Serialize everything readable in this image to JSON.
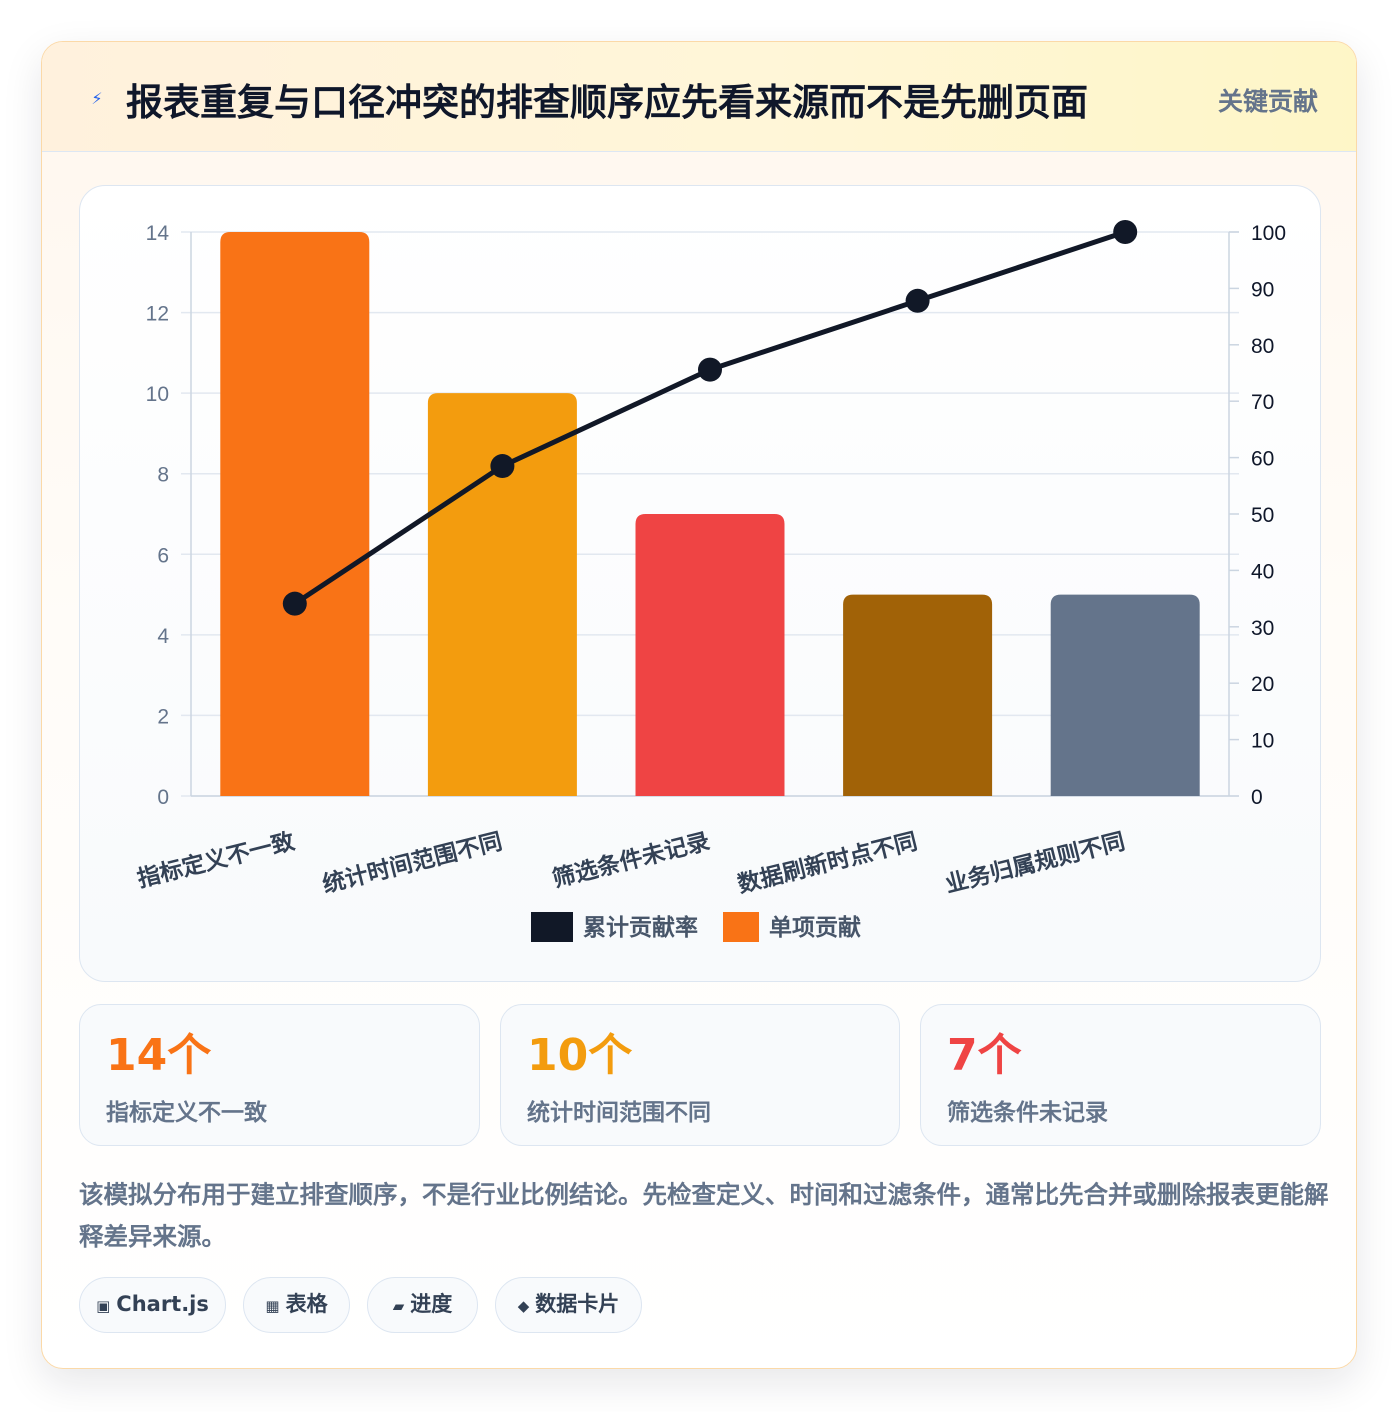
{
  "header": {
    "icon": "lightning-icon",
    "title": "报表重复与口径冲突的排查顺序应先看来源而不是先删页面",
    "badge": "关键贡献"
  },
  "chart_data": {
    "type": "bar",
    "categories": [
      "指标定义不一致",
      "统计时间范围不同",
      "筛选条件未记录",
      "数据刷新时点不同",
      "业务归属规则不同"
    ],
    "series": [
      {
        "name": "单项贡献",
        "type": "bar",
        "axis": "left",
        "values": [
          14,
          10,
          7,
          5,
          5
        ],
        "colors": [
          "#f97316",
          "#f39c0e",
          "#ef4444",
          "#a16207",
          "#64748b"
        ]
      },
      {
        "name": "累计贡献率",
        "type": "line",
        "axis": "right",
        "values": [
          34.1,
          58.5,
          75.6,
          87.8,
          100
        ],
        "color": "#111827"
      }
    ],
    "y_left": {
      "min": 0,
      "max": 14,
      "ticks": [
        0,
        2,
        4,
        6,
        8,
        10,
        12,
        14
      ]
    },
    "y_right": {
      "min": 0,
      "max": 100,
      "ticks": [
        0,
        10,
        20,
        30,
        40,
        50,
        60,
        70,
        80,
        90,
        100
      ]
    },
    "legend": [
      "累计贡献率",
      "单项贡献"
    ],
    "legend_position": "bottom",
    "grid": true
  },
  "stats": [
    {
      "value": "14个",
      "label": "指标定义不一致",
      "color": "#f97316"
    },
    {
      "value": "10个",
      "label": "统计时间范围不同",
      "color": "#f39c0e"
    },
    {
      "value": "7个",
      "label": "筛选条件未记录",
      "color": "#ef4444"
    }
  ],
  "note": "该模拟分布用于建立排查顺序，不是行业比例结论。先检查定义、时间和过滤条件，通常比先合并或删除报表更能解释差异来源。",
  "tags": [
    {
      "icon": "▣",
      "label": "Chart.js"
    },
    {
      "icon": "▦",
      "label": "表格"
    },
    {
      "icon": "▰",
      "label": "进度"
    },
    {
      "icon": "◆",
      "label": "数据卡片"
    }
  ]
}
